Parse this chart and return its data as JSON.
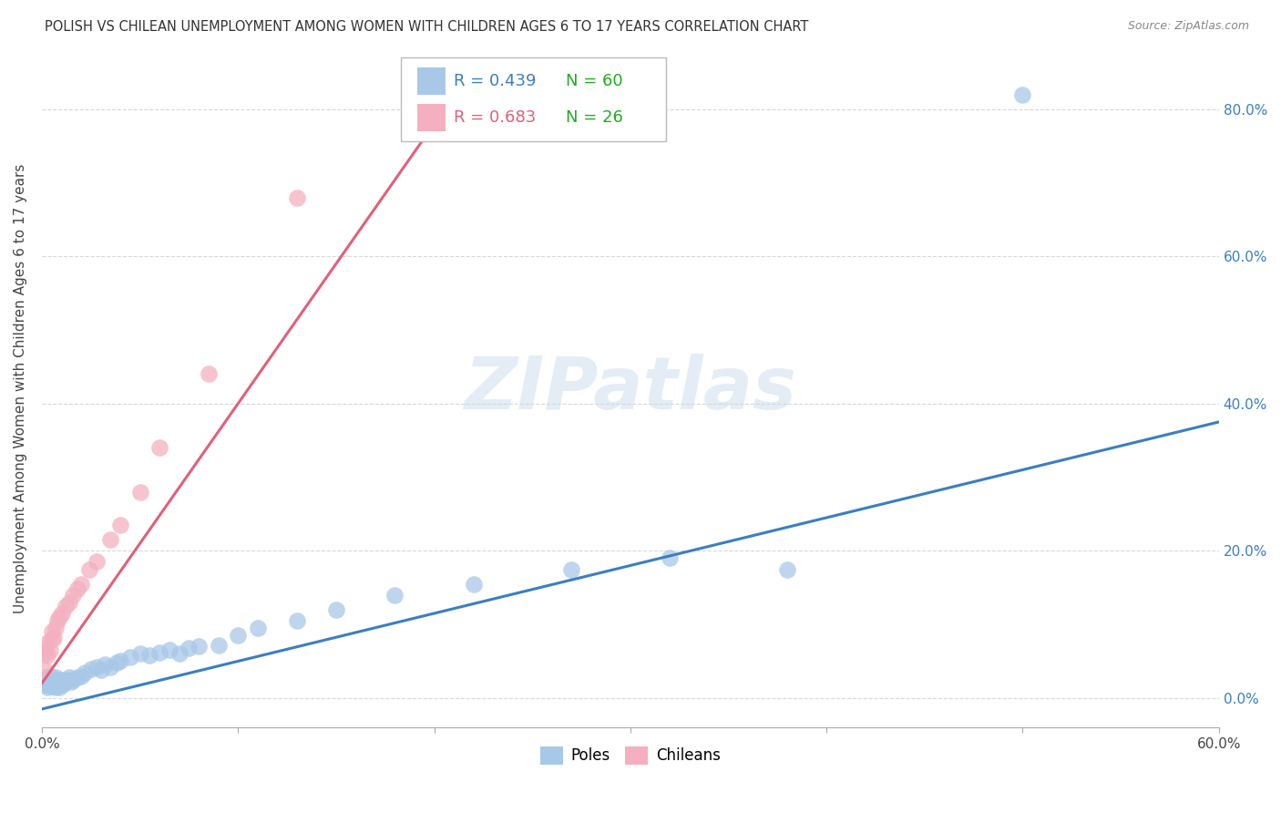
{
  "title": "POLISH VS CHILEAN UNEMPLOYMENT AMONG WOMEN WITH CHILDREN AGES 6 TO 17 YEARS CORRELATION CHART",
  "source": "Source: ZipAtlas.com",
  "ylabel": "Unemployment Among Women with Children Ages 6 to 17 years",
  "xlim": [
    0.0,
    0.6
  ],
  "ylim": [
    -0.04,
    0.88
  ],
  "xticks": [
    0.0,
    0.1,
    0.2,
    0.3,
    0.4,
    0.5,
    0.6
  ],
  "yticks": [
    0.0,
    0.2,
    0.4,
    0.6,
    0.8
  ],
  "ytick_labels": [
    "0.0%",
    "20.0%",
    "40.0%",
    "60.0%",
    "80.0%"
  ],
  "poles_R": 0.439,
  "poles_N": 60,
  "chileans_R": 0.683,
  "chileans_N": 26,
  "poles_color": "#a8c8e8",
  "poles_line_color": "#3a7fc1",
  "chileans_color": "#f4b0c0",
  "chileans_line_color": "#e0607a",
  "legend_R_poles_color": "#3a7fc1",
  "legend_R_chileans_color": "#e0607a",
  "legend_N_color": "#22aa22",
  "watermark": "ZIPatlas",
  "background_color": "#ffffff",
  "grid_color": "#d8d8d8",
  "poles_x": [
    0.001,
    0.001,
    0.002,
    0.002,
    0.002,
    0.003,
    0.003,
    0.003,
    0.004,
    0.004,
    0.004,
    0.005,
    0.005,
    0.005,
    0.006,
    0.006,
    0.007,
    0.007,
    0.007,
    0.008,
    0.008,
    0.009,
    0.009,
    0.01,
    0.01,
    0.011,
    0.012,
    0.013,
    0.014,
    0.015,
    0.016,
    0.018,
    0.02,
    0.022,
    0.025,
    0.028,
    0.03,
    0.032,
    0.035,
    0.038,
    0.04,
    0.045,
    0.05,
    0.055,
    0.06,
    0.065,
    0.07,
    0.075,
    0.08,
    0.09,
    0.1,
    0.11,
    0.13,
    0.15,
    0.18,
    0.22,
    0.27,
    0.32,
    0.38,
    0.5
  ],
  "poles_y": [
    0.02,
    0.025,
    0.018,
    0.022,
    0.028,
    0.015,
    0.02,
    0.025,
    0.018,
    0.022,
    0.03,
    0.016,
    0.02,
    0.025,
    0.018,
    0.022,
    0.015,
    0.02,
    0.028,
    0.018,
    0.025,
    0.015,
    0.022,
    0.018,
    0.025,
    0.02,
    0.022,
    0.025,
    0.028,
    0.022,
    0.025,
    0.028,
    0.03,
    0.035,
    0.04,
    0.042,
    0.038,
    0.045,
    0.042,
    0.048,
    0.05,
    0.055,
    0.06,
    0.058,
    0.062,
    0.065,
    0.06,
    0.068,
    0.07,
    0.072,
    0.085,
    0.095,
    0.105,
    0.12,
    0.14,
    0.155,
    0.175,
    0.19,
    0.175,
    0.82
  ],
  "chileans_x": [
    0.001,
    0.002,
    0.002,
    0.003,
    0.003,
    0.004,
    0.005,
    0.005,
    0.006,
    0.007,
    0.008,
    0.009,
    0.01,
    0.012,
    0.014,
    0.016,
    0.018,
    0.02,
    0.024,
    0.028,
    0.035,
    0.04,
    0.05,
    0.06,
    0.085,
    0.13
  ],
  "chileans_y": [
    0.04,
    0.06,
    0.068,
    0.058,
    0.075,
    0.065,
    0.08,
    0.09,
    0.082,
    0.095,
    0.105,
    0.11,
    0.115,
    0.125,
    0.13,
    0.14,
    0.148,
    0.155,
    0.175,
    0.185,
    0.215,
    0.235,
    0.28,
    0.34,
    0.44,
    0.68
  ],
  "poles_line_x0": 0.0,
  "poles_line_y0": -0.015,
  "poles_line_x1": 0.6,
  "poles_line_y1": 0.375,
  "chileans_line_x0": 0.0,
  "chileans_line_y0": 0.02,
  "chileans_line_x1": 0.2,
  "chileans_line_y1": 0.78
}
